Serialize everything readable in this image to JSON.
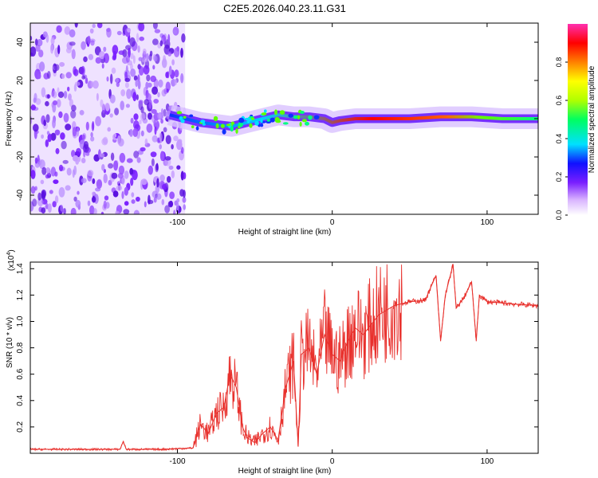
{
  "title": "C2E5.2026.040.23.11.G31",
  "chart_data": [
    {
      "type": "heatmap",
      "xlabel": "Height of straight line (km)",
      "ylabel": "Frequency (Hz)",
      "xlim": [
        -195,
        133
      ],
      "ylim": [
        -50,
        50
      ],
      "x_ticks": [
        -100,
        0,
        100
      ],
      "y_ticks": [
        -40,
        -20,
        0,
        20,
        40
      ],
      "colorbar": {
        "label": "Normalized spectral amplitude",
        "range": [
          0,
          1
        ],
        "ticks": [
          0.0,
          0.2,
          0.4,
          0.6,
          0.8
        ],
        "tick_labels": [
          "0.0",
          "0.2",
          "0.4",
          "0.6",
          "0.8"
        ],
        "colors": [
          "#ffffff",
          "#d9b3ff",
          "#7a1fff",
          "#1010ff",
          "#00e0ff",
          "#00ff60",
          "#b0ff00",
          "#ffff00",
          "#ff8000",
          "#ff0000",
          "#ff30b0"
        ]
      },
      "noise_region": {
        "x": [
          -195,
          -95
        ],
        "freq": [
          -50,
          50
        ]
      },
      "ridge": [
        [
          -105,
          2
        ],
        [
          -95,
          0
        ],
        [
          -85,
          -2
        ],
        [
          -75,
          -3
        ],
        [
          -65,
          -4
        ],
        [
          -55,
          -2
        ],
        [
          -45,
          0
        ],
        [
          -35,
          2
        ],
        [
          -25,
          1
        ],
        [
          -15,
          1
        ],
        [
          -5,
          0
        ],
        [
          0,
          -2
        ],
        [
          5,
          -1
        ],
        [
          15,
          0
        ],
        [
          30,
          0
        ],
        [
          50,
          0
        ],
        [
          70,
          1
        ],
        [
          90,
          1
        ],
        [
          110,
          0
        ],
        [
          133,
          0
        ]
      ]
    },
    {
      "type": "line",
      "xlabel": "Height of straight line (km)",
      "ylabel": "SNR (10 * v/v)",
      "y_multiplier": "(x10",
      "y_multiplier_exp": "4",
      "y_multiplier_close": ")",
      "xlim": [
        -195,
        133
      ],
      "ylim": [
        0,
        1.45
      ],
      "x_ticks": [
        -100,
        0,
        100
      ],
      "y_ticks": [
        0.2,
        0.4,
        0.6,
        0.8,
        1.0,
        1.2,
        1.4
      ],
      "y_tick_labels": [
        "0.2",
        "0.4",
        "0.6",
        "0.8",
        "1.0",
        "1.2",
        "1.4"
      ],
      "color": "#e8302c",
      "x": [
        -195,
        -160,
        -137,
        -135,
        -133,
        -110,
        -90,
        -85,
        -80,
        -75,
        -70,
        -66,
        -62,
        -58,
        -55,
        -50,
        -45,
        -40,
        -35,
        -30,
        -25,
        -22,
        -20,
        -15,
        -10,
        -5,
        0,
        5,
        10,
        15,
        20,
        30,
        40,
        50,
        60,
        67,
        70,
        73,
        78,
        80,
        85,
        90,
        93,
        95,
        100,
        110,
        120,
        133
      ],
      "y": [
        0.03,
        0.03,
        0.03,
        0.09,
        0.03,
        0.03,
        0.04,
        0.22,
        0.15,
        0.3,
        0.35,
        0.6,
        0.5,
        0.2,
        0.12,
        0.08,
        0.15,
        0.2,
        0.1,
        0.5,
        0.7,
        0.05,
        0.75,
        0.8,
        0.6,
        0.9,
        0.75,
        0.7,
        0.85,
        0.95,
        0.9,
        1.05,
        1.12,
        1.15,
        1.16,
        1.35,
        0.85,
        1.2,
        1.43,
        1.1,
        1.18,
        1.3,
        0.85,
        1.2,
        1.15,
        1.14,
        1.13,
        1.12
      ]
    }
  ]
}
